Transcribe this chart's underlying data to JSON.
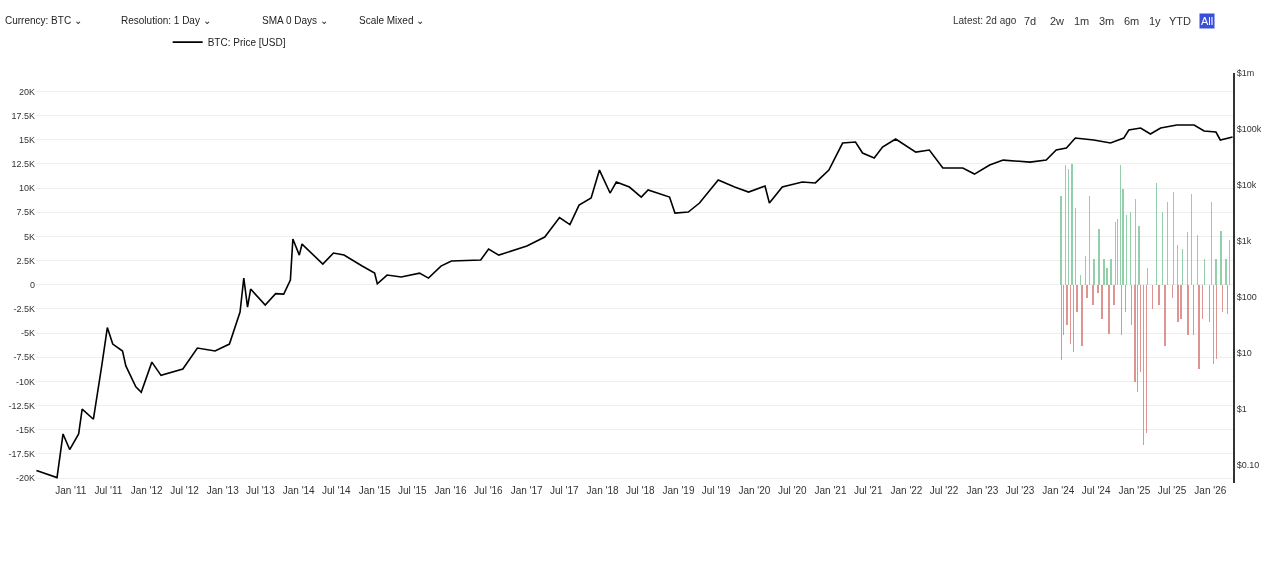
{
  "chart_data": {
    "type": "line",
    "annotations": [
      "Currency: BTC ⌄",
      "Resolution: 1 Day ⌄",
      "SMA 0 Days ⌄",
      "Scale Mixed ⌄",
      "Latest: 2d ago",
      "7d",
      "2w",
      "1m",
      "3m",
      "6m",
      "1y",
      "YTD",
      "All"
    ],
    "series": [
      {
        "type": "bar",
        "color": "#80c79c",
        "x": [
          "2024-01-14",
          "2024-02-04",
          "2024-02-20",
          "2024-03-07",
          "2024-03-23",
          "2024-04-16",
          "2024-05-10",
          "2024-05-31",
          "2024-06-20",
          "2024-07-14",
          "2024-08-07",
          "2024-08-23",
          "2024-09-11",
          "2024-10-02",
          "2024-10-13",
          "2024-10-26",
          "2024-11-08",
          "2024-11-24",
          "2024-12-14",
          "2025-01-07",
          "2025-01-23",
          "2025-03-04",
          "2025-04-18",
          "2025-05-15",
          "2025-06-09",
          "2025-07-08",
          "2025-07-27",
          "2025-08-20",
          "2025-09-13",
          "2025-10-02",
          "2025-10-31",
          "2025-12-03",
          "2026-01-07",
          "2026-01-28",
          "2026-02-21",
          "2026-03-17",
          "2026-04-04"
        ],
        "values": [
          9200,
          12400,
          12000,
          12500,
          7900,
          1000,
          3000,
          9200,
          2700,
          5800,
          2700,
          1700,
          2700,
          6500,
          6800,
          12400,
          9900,
          7200,
          7500,
          8900,
          6100,
          1700,
          10500,
          7500,
          8600,
          9600,
          4100,
          3700,
          5500,
          9400,
          5100,
          2700,
          8600,
          2700,
          5600,
          2700,
          4600
        ]
      },
      {
        "type": "bar",
        "color": "#d9827e",
        "x": [
          "2024-01-17",
          "2024-01-27",
          "2024-02-12",
          "2024-02-28",
          "2024-03-15",
          "2024-03-31",
          "2024-04-24",
          "2024-05-18",
          "2024-06-15",
          "2024-07-09",
          "2024-07-30",
          "2024-08-31",
          "2024-09-24",
          "2024-10-31",
          "2024-11-19",
          "2024-12-17",
          "2025-01-03",
          "2025-01-15",
          "2025-01-31",
          "2025-02-13",
          "2025-03-01",
          "2025-03-28",
          "2025-04-29",
          "2025-05-27",
          "2025-07-03",
          "2025-07-30",
          "2025-08-12",
          "2025-09-16",
          "2025-10-12",
          "2025-11-08",
          "2025-11-24",
          "2025-12-27",
          "2026-01-17",
          "2026-01-31",
          "2026-03-01",
          "2026-03-25"
        ],
        "values": [
          -7800,
          -5200,
          -4200,
          -6100,
          -7000,
          -2800,
          -6300,
          -1400,
          -2100,
          -800,
          -3500,
          -5100,
          -2100,
          -5200,
          -2800,
          -4200,
          -10100,
          -11100,
          -9000,
          -16600,
          -15300,
          -2500,
          -2100,
          -6300,
          -1400,
          -3900,
          -3500,
          -5200,
          -5200,
          -8700,
          -3500,
          -3900,
          -8200,
          -7700,
          -2800,
          -3000
        ]
      },
      {
        "name": "BTC: Price [USD]",
        "color": "#000000",
        "axis": "y2",
        "x": [
          "2010-07-20",
          "2010-10-27",
          "2010-11-25",
          "2010-12-27",
          "2011-02-08",
          "2011-02-25",
          "2011-04-20",
          "2011-05-30",
          "2011-06-26",
          "2011-07-22",
          "2011-09-07",
          "2011-09-23",
          "2011-11-10",
          "2011-12-06",
          "2012-01-26",
          "2012-03-10",
          "2012-06-23",
          "2012-09-01",
          "2012-11-25",
          "2013-02-02",
          "2013-03-25",
          "2013-04-12",
          "2013-04-30",
          "2013-05-15",
          "2013-07-24",
          "2013-09-12",
          "2013-10-21",
          "2013-11-22",
          "2013-12-04",
          "2014-01-04",
          "2014-01-17",
          "2014-04-27",
          "2014-06-17",
          "2014-08-07",
          "2014-11-02",
          "2015-01-01",
          "2015-01-14",
          "2015-03-02",
          "2015-05-09",
          "2015-08-05",
          "2015-09-17",
          "2015-11-16",
          "2016-01-05",
          "2016-05-25",
          "2016-07-02",
          "2016-08-20",
          "2017-01-02",
          "2017-03-29",
          "2017-06-08",
          "2017-07-28",
          "2017-09-10",
          "2017-11-07",
          "2017-12-17",
          "2018-02-06",
          "2018-03-08",
          "2018-05-10",
          "2018-07-06",
          "2018-08-08",
          "2018-11-19",
          "2018-12-15",
          "2019-02-17",
          "2019-04-12",
          "2019-07-11",
          "2019-09-28",
          "2019-12-04",
          "2020-02-21",
          "2020-03-13",
          "2020-05-14",
          "2020-08-18",
          "2020-10-20",
          "2020-12-24",
          "2021-02-28",
          "2021-05-01",
          "2021-06-04",
          "2021-07-30",
          "2021-09-08",
          "2021-11-10",
          "2022-02-15",
          "2022-04-21",
          "2022-06-25",
          "2022-09-29",
          "2022-11-24",
          "2023-02-05",
          "2023-04-11",
          "2023-08-18",
          "2023-11-04",
          "2023-12-22",
          "2024-02-09",
          "2024-03-23",
          "2024-06-19",
          "2024-09-08",
          "2024-11-11",
          "2024-12-05",
          "2025-01-31",
          "2025-03-19",
          "2025-05-07",
          "2025-07-24",
          "2025-10-15",
          "2025-12-02",
          "2026-01-28",
          "2026-02-18",
          "2026-04-18"
        ],
        "values": [
          0.08,
          0.06,
          0.36,
          0.19,
          0.36,
          1.0,
          0.66,
          5.9,
          28.5,
          14.5,
          10.9,
          5.9,
          2.5,
          2.0,
          6.9,
          4.0,
          5.2,
          12.3,
          10.9,
          14.5,
          54,
          218,
          66,
          139,
          72,
          115,
          113,
          201,
          1086,
          562,
          884,
          388,
          611,
          562,
          358,
          268,
          173,
          247,
          228,
          268,
          218,
          358,
          440,
          458,
          719,
          562,
          815,
          1178,
          2630,
          1963,
          4395,
          5860,
          18500,
          7200,
          11300,
          9200,
          6100,
          8150,
          6100,
          3160,
          3300,
          4770,
          12300,
          9200,
          7500,
          9600,
          4770,
          9200,
          11300,
          10900,
          18500,
          56200,
          58600,
          37300,
          30300,
          47700,
          66300,
          38800,
          42200,
          20100,
          20100,
          15700,
          22800,
          27900,
          25700,
          27900,
          42200,
          45800,
          69000,
          63700,
          56200,
          69000,
          96000,
          104000,
          81500,
          104000,
          118000,
          118000,
          92000,
          88300,
          63700,
          72000
        ]
      }
    ],
    "xlim": [
      "2010-07-18",
      "2026-04-20"
    ],
    "xticks": [
      {
        "value": "2011-01-01",
        "label": "Jan '11"
      },
      {
        "value": "2011-07-01",
        "label": "Jul '11"
      },
      {
        "value": "2012-01-01",
        "label": "Jan '12"
      },
      {
        "value": "2012-07-01",
        "label": "Jul '12"
      },
      {
        "value": "2013-01-01",
        "label": "Jan '13"
      },
      {
        "value": "2013-07-01",
        "label": "Jul '13"
      },
      {
        "value": "2014-01-01",
        "label": "Jan '14"
      },
      {
        "value": "2014-07-01",
        "label": "Jul '14"
      },
      {
        "value": "2015-01-01",
        "label": "Jan '15"
      },
      {
        "value": "2015-07-01",
        "label": "Jul '15"
      },
      {
        "value": "2016-01-01",
        "label": "Jan '16"
      },
      {
        "value": "2016-07-01",
        "label": "Jul '16"
      },
      {
        "value": "2017-01-01",
        "label": "Jan '17"
      },
      {
        "value": "2017-07-01",
        "label": "Jul '17"
      },
      {
        "value": "2018-01-01",
        "label": "Jan '18"
      },
      {
        "value": "2018-07-01",
        "label": "Jul '18"
      },
      {
        "value": "2019-01-01",
        "label": "Jan '19"
      },
      {
        "value": "2019-07-01",
        "label": "Jul '19"
      },
      {
        "value": "2020-01-01",
        "label": "Jan '20"
      },
      {
        "value": "2020-07-01",
        "label": "Jul '20"
      },
      {
        "value": "2021-01-01",
        "label": "Jan '21"
      },
      {
        "value": "2021-07-01",
        "label": "Jul '21"
      },
      {
        "value": "2022-01-01",
        "label": "Jan '22"
      },
      {
        "value": "2022-07-01",
        "label": "Jul '22"
      },
      {
        "value": "2023-01-01",
        "label": "Jan '23"
      },
      {
        "value": "2023-07-01",
        "label": "Jul '23"
      },
      {
        "value": "2024-01-01",
        "label": "Jan '24"
      },
      {
        "value": "2024-07-01",
        "label": "Jul '24"
      },
      {
        "value": "2025-01-01",
        "label": "Jan '25"
      },
      {
        "value": "2025-07-01",
        "label": "Jul '25"
      },
      {
        "value": "2026-01-01",
        "label": "Jan '26"
      }
    ],
    "ylim": [
      -20500,
      21900
    ],
    "yticks": [
      {
        "value": -20000,
        "label": "-20K"
      },
      {
        "value": -17500,
        "label": "-17.5K"
      },
      {
        "value": -15000,
        "label": "-15K"
      },
      {
        "value": -12500,
        "label": "-12.5K"
      },
      {
        "value": -10000,
        "label": "-10K"
      },
      {
        "value": -7500,
        "label": "-7.5K"
      },
      {
        "value": -5000,
        "label": "-5K"
      },
      {
        "value": -2500,
        "label": "-2.5K"
      },
      0,
      {
        "value": 2500,
        "label": "2.5K"
      },
      {
        "value": 5000,
        "label": "5K"
      },
      {
        "value": 7500,
        "label": "7.5K"
      },
      {
        "value": 10000,
        "label": "10K"
      },
      {
        "value": 12500,
        "label": "12.5K"
      },
      {
        "value": 15000,
        "label": "15K"
      },
      {
        "value": 17500,
        "label": "17.5K"
      },
      {
        "value": 20000,
        "label": "20K"
      }
    ],
    "y2lim": [
      0.048,
      1000000
    ],
    "y2ticks": [
      {
        "value": 0.1,
        "label": "$0.10"
      },
      {
        "value": 1,
        "label": "$1"
      },
      {
        "value": 10,
        "label": "$10"
      },
      {
        "value": 100,
        "label": "$100"
      },
      {
        "value": 1000,
        "label": "$1k"
      },
      {
        "value": 10000,
        "label": "$10k"
      },
      {
        "value": 100000,
        "label": "$100k"
      },
      {
        "value": 1000000,
        "label": "$1m"
      }
    ],
    "log": "y2",
    "grid": "y",
    "legend": "top left",
    "marker": "none",
    "line_style": "solid"
  }
}
